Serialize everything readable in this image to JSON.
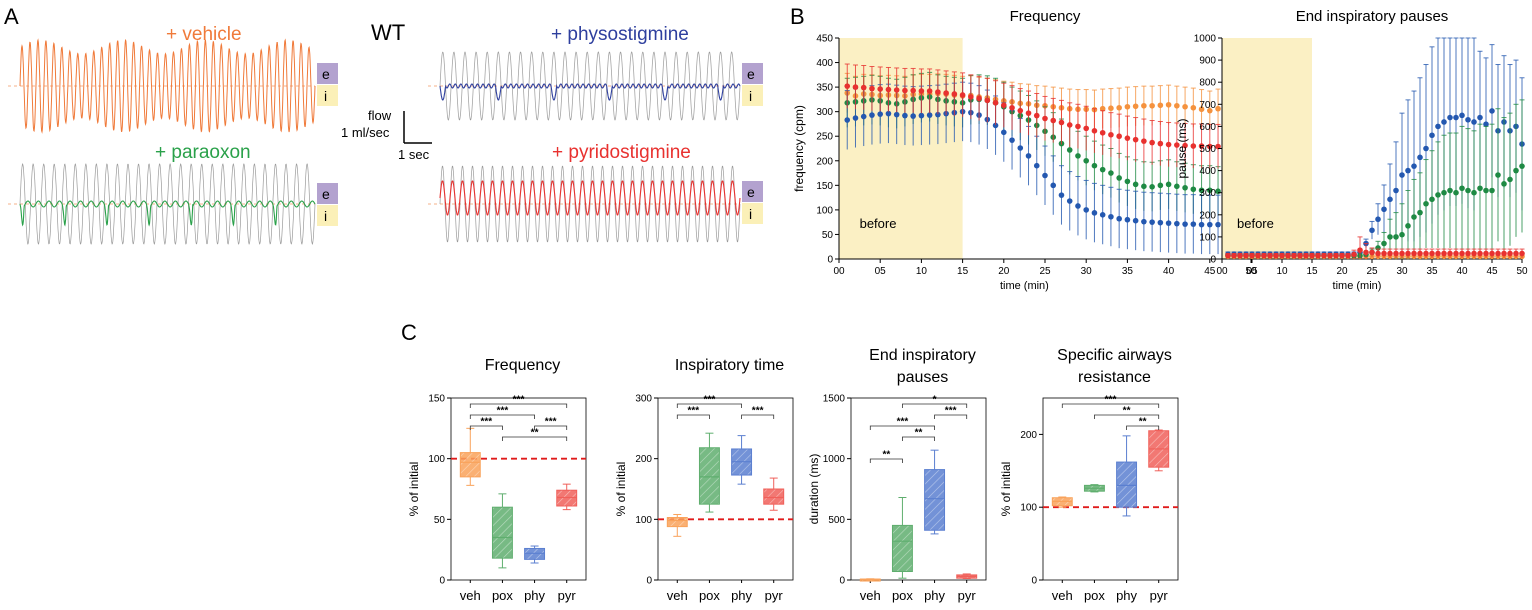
{
  "panel_a": {
    "letter": "A",
    "genotype": "WT",
    "traces": [
      {
        "label": "+ vehicle",
        "color": "#f07a3a",
        "shape": "regular"
      },
      {
        "label": "+ paraoxon",
        "color": "#2aa14a",
        "shape": "pauses"
      },
      {
        "label": "+ physostigmine",
        "color": "#2e3f9e",
        "shape": "long-pauses"
      },
      {
        "label": "+ pyridostigmine",
        "color": "#e8312f",
        "shape": "regular"
      }
    ],
    "phase_labels": {
      "expiration": "e",
      "inspiration": "i"
    },
    "phase_colors": {
      "expiration": "#b3a2cf",
      "inspiration": "#fbf0b8"
    },
    "scale_bar": {
      "flow_line1": "flow",
      "flow_line2": "1 ml/sec",
      "time": "1 sec"
    }
  },
  "panel_b": {
    "letter": "B",
    "shade_label": "before",
    "shade_color": "#fbf0c4",
    "colors": {
      "veh": "#f5923e",
      "pox": "#1f8a44",
      "phy": "#2458b0",
      "pyr": "#e8312f"
    }
  },
  "panel_c": {
    "letter": "C",
    "groups": [
      "veh",
      "pox",
      "phy",
      "pyr"
    ],
    "colors": {
      "veh": "#f9a25a",
      "pox": "#5fae6e",
      "phy": "#5b7fd0",
      "pyr": "#f0605a"
    },
    "baseline_color": "#e01b1b"
  },
  "chart_data": [
    {
      "type": "line",
      "title": "Frequency",
      "xlabel": "time (min)",
      "ylabel": "frequency (cpm)",
      "xlim": [
        0,
        50
      ],
      "ylim": [
        0,
        450
      ],
      "xticks": [
        "00",
        "05",
        "10",
        "15",
        "20",
        "25",
        "30",
        "35",
        "40",
        "45",
        "50"
      ],
      "yticks": [
        0,
        50,
        100,
        150,
        200,
        250,
        300,
        350,
        400,
        450
      ],
      "x": [
        1,
        2,
        3,
        4,
        5,
        6,
        7,
        8,
        9,
        10,
        11,
        12,
        13,
        14,
        15,
        16,
        17,
        18,
        19,
        20,
        21,
        22,
        23,
        24,
        25,
        26,
        27,
        28,
        29,
        30,
        31,
        32,
        33,
        34,
        35,
        36,
        37,
        38,
        39,
        40,
        41,
        42,
        43,
        44,
        45,
        46,
        47,
        48,
        49,
        50
      ],
      "series": [
        {
          "group": "veh",
          "error": 40,
          "values": [
            338,
            332,
            336,
            335,
            333,
            334,
            333,
            332,
            335,
            336,
            336,
            337,
            336,
            334,
            332,
            333,
            330,
            328,
            325,
            322,
            320,
            317,
            316,
            313,
            312,
            310,
            308,
            306,
            305,
            305,
            304,
            306,
            307,
            308,
            310,
            311,
            312,
            312,
            313,
            314,
            312,
            310,
            308,
            305,
            302,
            306,
            310,
            312,
            314,
            298
          ]
        },
        {
          "group": "pox",
          "error": 50,
          "values": [
            318,
            320,
            322,
            324,
            322,
            318,
            316,
            320,
            325,
            328,
            330,
            325,
            322,
            320,
            318,
            324,
            325,
            323,
            318,
            310,
            300,
            292,
            283,
            272,
            260,
            248,
            235,
            222,
            210,
            200,
            190,
            182,
            175,
            165,
            158,
            152,
            148,
            147,
            150,
            152,
            148,
            145,
            142,
            140,
            140,
            138,
            135,
            132,
            128,
            120
          ]
        },
        {
          "group": "phy",
          "error": 60,
          "values": [
            283,
            287,
            290,
            293,
            295,
            296,
            294,
            292,
            291,
            292,
            293,
            294,
            296,
            298,
            300,
            298,
            293,
            284,
            272,
            258,
            242,
            226,
            210,
            190,
            170,
            150,
            130,
            118,
            108,
            100,
            94,
            90,
            86,
            82,
            80,
            78,
            76,
            75,
            74,
            73,
            72,
            71,
            71,
            70,
            70,
            70,
            70,
            70,
            69,
            70
          ]
        },
        {
          "group": "pyr",
          "error": 45,
          "values": [
            352,
            350,
            349,
            347,
            346,
            345,
            344,
            343,
            343,
            342,
            342,
            340,
            338,
            336,
            334,
            330,
            327,
            323,
            318,
            313,
            308,
            302,
            297,
            292,
            286,
            282,
            278,
            273,
            270,
            266,
            261,
            257,
            253,
            250,
            246,
            243,
            240,
            237,
            235,
            233,
            232,
            231,
            230,
            230,
            229,
            229,
            228,
            229,
            230,
            231
          ]
        }
      ]
    },
    {
      "type": "line",
      "title": "End inspiratory pauses",
      "xlabel": "time (min)",
      "ylabel": "pause (ms)",
      "xlim": [
        0,
        50
      ],
      "ylim": [
        0,
        1000
      ],
      "xticks": [
        "00",
        "05",
        "10",
        "15",
        "20",
        "25",
        "30",
        "35",
        "40",
        "45",
        "50"
      ],
      "yticks": [
        0,
        100,
        200,
        300,
        400,
        500,
        600,
        700,
        800,
        900,
        1000
      ],
      "x": [
        1,
        2,
        3,
        4,
        5,
        6,
        7,
        8,
        9,
        10,
        11,
        12,
        13,
        14,
        15,
        16,
        17,
        18,
        19,
        20,
        21,
        22,
        23,
        24,
        25,
        26,
        27,
        28,
        29,
        30,
        31,
        32,
        33,
        34,
        35,
        36,
        37,
        38,
        39,
        40,
        41,
        42,
        43,
        44,
        45,
        46,
        47,
        48,
        49,
        50
      ],
      "series": [
        {
          "group": "veh",
          "error": 8,
          "values": [
            12,
            12,
            12,
            12,
            12,
            12,
            12,
            12,
            12,
            12,
            12,
            12,
            12,
            12,
            12,
            12,
            12,
            12,
            12,
            12,
            12,
            12,
            12,
            12,
            12,
            12,
            12,
            12,
            12,
            12,
            12,
            12,
            12,
            12,
            12,
            12,
            12,
            12,
            12,
            12,
            12,
            12,
            12,
            12,
            12,
            12,
            12,
            12,
            12,
            12
          ]
        },
        {
          "group": "phy",
          "error": [
            10,
            10,
            10,
            10,
            10,
            10,
            10,
            10,
            10,
            10,
            10,
            10,
            10,
            10,
            10,
            10,
            10,
            10,
            10,
            10,
            10,
            10,
            12,
            20,
            40,
            70,
            110,
            160,
            220,
            280,
            320,
            340,
            360,
            380,
            400,
            400,
            400,
            400,
            400,
            400,
            400,
            400,
            300,
            300,
            300,
            300,
            300,
            300,
            300,
            300
          ],
          "values": [
            22,
            22,
            22,
            22,
            22,
            22,
            22,
            22,
            22,
            22,
            22,
            22,
            22,
            22,
            22,
            22,
            22,
            22,
            22,
            22,
            22,
            22,
            30,
            70,
            130,
            180,
            225,
            270,
            310,
            380,
            400,
            420,
            460,
            500,
            560,
            600,
            620,
            640,
            640,
            650,
            630,
            620,
            640,
            610,
            670,
            580,
            620,
            580,
            600,
            520
          ]
        },
        {
          "group": "pox",
          "error": [
            6,
            6,
            6,
            6,
            6,
            6,
            6,
            6,
            6,
            6,
            6,
            6,
            6,
            6,
            6,
            6,
            6,
            6,
            6,
            6,
            6,
            6,
            6,
            10,
            15,
            30,
            50,
            80,
            110,
            140,
            160,
            170,
            180,
            200,
            220,
            240,
            260,
            260,
            270,
            280,
            280,
            280,
            290,
            290,
            300,
            300,
            300,
            300,
            300,
            300
          ],
          "values": [
            15,
            15,
            15,
            15,
            15,
            15,
            15,
            15,
            15,
            15,
            15,
            15,
            15,
            15,
            15,
            15,
            15,
            15,
            15,
            15,
            15,
            15,
            15,
            20,
            30,
            50,
            70,
            100,
            100,
            110,
            150,
            190,
            210,
            250,
            270,
            290,
            300,
            310,
            300,
            320,
            310,
            300,
            320,
            310,
            310,
            380,
            340,
            360,
            400,
            420
          ]
        },
        {
          "group": "pyr",
          "error": [
            10,
            10,
            10,
            10,
            10,
            10,
            10,
            10,
            10,
            10,
            10,
            10,
            10,
            10,
            10,
            10,
            10,
            10,
            10,
            10,
            10,
            20,
            60,
            40,
            20,
            20,
            20,
            20,
            20,
            20,
            20,
            20,
            20,
            20,
            20,
            20,
            20,
            20,
            20,
            20,
            20,
            20,
            20,
            20,
            20,
            20,
            20,
            20,
            20,
            20
          ],
          "values": [
            15,
            15,
            15,
            15,
            15,
            15,
            15,
            15,
            15,
            15,
            15,
            15,
            15,
            15,
            15,
            15,
            15,
            15,
            15,
            15,
            15,
            20,
            40,
            30,
            30,
            25,
            25,
            25,
            25,
            25,
            25,
            25,
            25,
            25,
            25,
            25,
            25,
            25,
            25,
            25,
            25,
            25,
            25,
            25,
            25,
            25,
            25,
            25,
            25,
            25
          ]
        }
      ]
    },
    {
      "type": "box",
      "title": "Frequency",
      "ylabel": "% of initial",
      "ylim": [
        0,
        150
      ],
      "yticks": [
        0,
        50,
        100,
        150
      ],
      "baseline": 100,
      "boxes": [
        {
          "group": "veh",
          "min": 78,
          "q1": 85,
          "median": 97,
          "mean": 95,
          "q3": 105,
          "max": 125
        },
        {
          "group": "pox",
          "min": 10,
          "q1": 18,
          "median": 35,
          "mean": 37,
          "q3": 60,
          "max": 71
        },
        {
          "group": "phy",
          "min": 14,
          "q1": 17,
          "median": 22,
          "mean": 21,
          "q3": 26,
          "max": 28
        },
        {
          "group": "pyr",
          "min": 58,
          "q1": 61,
          "median": 68,
          "mean": 67,
          "q3": 74,
          "max": 79
        }
      ],
      "significance": [
        {
          "from": 0,
          "to": 3,
          "label": "***",
          "level": 0
        },
        {
          "from": 0,
          "to": 2,
          "label": "***",
          "level": 1
        },
        {
          "from": 0,
          "to": 1,
          "label": "***",
          "level": 2
        },
        {
          "from": 2,
          "to": 3,
          "label": "***",
          "level": 2
        },
        {
          "from": 1,
          "to": 3,
          "label": "**",
          "level": 3
        }
      ]
    },
    {
      "type": "box",
      "title": "Inspiratory time",
      "ylabel": "% of initial",
      "ylim": [
        0,
        300
      ],
      "yticks": [
        0,
        100,
        200,
        300
      ],
      "baseline": 100,
      "boxes": [
        {
          "group": "veh",
          "min": 72,
          "q1": 88,
          "median": 98,
          "mean": 96,
          "q3": 103,
          "max": 108
        },
        {
          "group": "pox",
          "min": 112,
          "q1": 125,
          "median": 170,
          "mean": 170,
          "q3": 218,
          "max": 242
        },
        {
          "group": "phy",
          "min": 158,
          "q1": 173,
          "median": 195,
          "mean": 197,
          "q3": 216,
          "max": 238
        },
        {
          "group": "pyr",
          "min": 115,
          "q1": 125,
          "median": 136,
          "mean": 138,
          "q3": 150,
          "max": 168
        }
      ],
      "significance": [
        {
          "from": 0,
          "to": 2,
          "label": "***",
          "level": 0
        },
        {
          "from": 0,
          "to": 1,
          "label": "***",
          "level": 1
        },
        {
          "from": 2,
          "to": 3,
          "label": "***",
          "level": 1
        }
      ]
    },
    {
      "type": "box",
      "title": [
        "End inspiratory",
        "pauses"
      ],
      "ylabel": "duration (ms)",
      "ylim": [
        0,
        1500
      ],
      "yticks": [
        0,
        500,
        1000,
        1500
      ],
      "baseline": null,
      "boxes": [
        {
          "group": "veh",
          "min": 0,
          "q1": 2,
          "median": 4,
          "mean": 4,
          "q3": 8,
          "max": 10
        },
        {
          "group": "pox",
          "min": 15,
          "q1": 70,
          "median": 320,
          "mean": 300,
          "q3": 450,
          "max": 680
        },
        {
          "group": "phy",
          "min": 380,
          "q1": 410,
          "median": 670,
          "mean": 650,
          "q3": 910,
          "max": 1070
        },
        {
          "group": "pyr",
          "min": 12,
          "q1": 15,
          "median": 30,
          "mean": 28,
          "q3": 42,
          "max": 50
        }
      ],
      "significance": [
        {
          "from": 1,
          "to": 3,
          "label": "*",
          "level": 0
        },
        {
          "from": 2,
          "to": 3,
          "label": "***",
          "level": 1
        },
        {
          "from": 0,
          "to": 2,
          "label": "***",
          "level": 2
        },
        {
          "from": 1,
          "to": 2,
          "label": "**",
          "level": 3
        },
        {
          "from": 0,
          "to": 1,
          "label": "**",
          "level": 5
        }
      ]
    },
    {
      "type": "box",
      "title": [
        "Specific airways",
        "resistance"
      ],
      "ylabel": "% of initial",
      "ylim": [
        0,
        250
      ],
      "yticks": [
        0,
        100,
        200
      ],
      "baseline": 100,
      "boxes": [
        {
          "group": "veh",
          "min": 100,
          "q1": 102,
          "median": 108,
          "mean": 107,
          "q3": 113,
          "max": 114
        },
        {
          "group": "pox",
          "min": 121,
          "q1": 122,
          "median": 126,
          "mean": 126,
          "q3": 130,
          "max": 131
        },
        {
          "group": "phy",
          "min": 88,
          "q1": 100,
          "median": 130,
          "mean": 130,
          "q3": 162,
          "max": 198
        },
        {
          "group": "pyr",
          "min": 150,
          "q1": 155,
          "median": 180,
          "mean": 180,
          "q3": 205,
          "max": 206
        }
      ],
      "significance": [
        {
          "from": 0,
          "to": 3,
          "label": "***",
          "level": 0
        },
        {
          "from": 1,
          "to": 3,
          "label": "**",
          "level": 1
        },
        {
          "from": 2,
          "to": 3,
          "label": "**",
          "level": 2
        }
      ]
    }
  ]
}
